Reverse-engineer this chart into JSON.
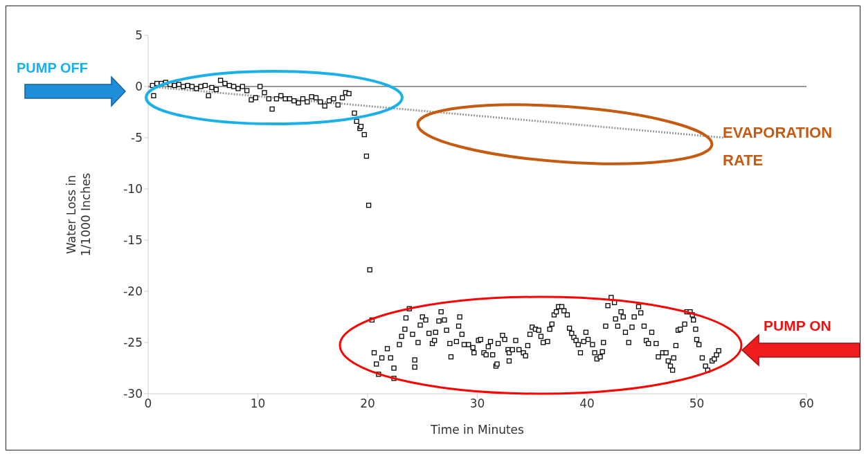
{
  "chart_data": {
    "type": "scatter",
    "xlabel": "Time in Minutes",
    "ylabel": "Water Loss in\n1/1000 Inches",
    "annotations": [
      "PUMP OFF",
      "EVAPORATION RATE",
      "PUMP ON"
    ],
    "xlim": [
      0,
      60
    ],
    "xticks": [
      0,
      10,
      20,
      30,
      40,
      50,
      60
    ],
    "ylim": [
      -30,
      5
    ],
    "yticks": [
      5,
      0,
      -5,
      -10,
      -15,
      -20,
      -25,
      -30
    ],
    "grid": false,
    "legend": false,
    "marker": "square",
    "ref_lines": [
      {
        "axis": "y",
        "value": 0,
        "color": "#999999"
      }
    ],
    "series": [
      {
        "color": "#000000",
        "x": [
          0.4,
          0.5,
          0.8,
          1.2,
          1.6,
          2.0,
          2.4,
          2.8,
          3.2,
          3.6,
          4.0,
          4.4,
          4.8,
          5.2,
          5.5,
          5.8,
          6.2,
          6.6,
          7.0,
          7.4,
          7.8,
          8.2,
          8.6,
          9.0,
          9.4,
          9.8,
          10.2,
          10.6,
          11.0,
          11.3,
          11.7,
          12.1,
          12.5,
          12.9,
          13.3,
          13.7,
          14.1,
          14.5,
          14.9,
          15.3,
          15.7,
          16.1,
          16.5,
          16.9,
          17.3,
          17.7,
          18.0,
          18.3,
          18.8,
          19.0,
          19.3,
          19.4,
          19.7,
          19.9,
          20.1,
          20.2,
          20.4,
          20.6,
          20.8,
          21.0,
          21.3,
          21.8,
          22.1,
          22.4,
          22.4,
          22.9,
          23.1,
          23.4,
          23.5,
          23.8,
          24.1,
          24.3,
          24.3,
          24.6,
          24.8,
          25.0,
          25.3,
          25.6,
          25.9,
          26.1,
          26.2,
          26.5,
          26.7,
          27.0,
          27.2,
          27.5,
          27.6,
          28.1,
          28.3,
          28.4,
          28.6,
          28.8,
          29.2,
          29.6,
          29.7,
          30.1,
          30.3,
          30.6,
          30.8,
          31.0,
          31.2,
          31.4,
          31.7,
          31.8,
          31.9,
          32.3,
          32.5,
          32.8,
          32.9,
          32.9,
          33.2,
          33.5,
          33.8,
          34.2,
          34.4,
          34.6,
          34.8,
          35.0,
          35.3,
          35.6,
          35.8,
          36.0,
          36.4,
          36.6,
          36.8,
          37.0,
          37.2,
          37.4,
          37.7,
          37.9,
          38.2,
          38.4,
          38.6,
          38.8,
          39.0,
          39.2,
          39.4,
          39.7,
          39.9,
          40.1,
          40.5,
          40.7,
          40.9,
          41.2,
          41.4,
          41.5,
          41.7,
          41.9,
          42.2,
          42.5,
          42.6,
          42.8,
          43.1,
          43.3,
          43.5,
          43.8,
          44.1,
          44.3,
          44.7,
          44.9,
          45.2,
          45.4,
          45.6,
          45.9,
          46.3,
          46.5,
          46.9,
          47.2,
          47.4,
          47.6,
          47.8,
          47.9,
          48.1,
          48.3,
          48.5,
          48.9,
          49.1,
          49.4,
          49.6,
          49.7,
          49.9,
          50.0,
          50.2,
          50.5,
          50.8,
          51.0,
          51.4,
          51.6,
          51.8,
          52.0
        ],
        "values": [
          0.1,
          -0.9,
          0.3,
          0.3,
          0.4,
          0.2,
          0.1,
          0.2,
          0.0,
          0.1,
          0.0,
          -0.2,
          0.0,
          0.1,
          -0.9,
          -0.1,
          -0.3,
          0.6,
          0.3,
          0.1,
          0.0,
          -0.2,
          0.0,
          -0.4,
          -1.3,
          -1.1,
          0.0,
          -0.6,
          -1.2,
          -2.2,
          -1.2,
          -0.9,
          -1.2,
          -1.2,
          -1.4,
          -1.6,
          -1.2,
          -1.5,
          -1.0,
          -1.1,
          -1.5,
          -1.9,
          -1.4,
          -1.2,
          -1.8,
          -1.1,
          -0.6,
          -0.7,
          -2.6,
          -3.4,
          -4.1,
          -3.9,
          -4.7,
          -6.8,
          -11.6,
          -17.9,
          -22.8,
          -26.0,
          -27.1,
          -28.1,
          -26.5,
          -25.6,
          -26.5,
          -27.5,
          -28.5,
          -25.2,
          -24.4,
          -23.7,
          -22.6,
          -21.7,
          -24.2,
          -26.7,
          -27.4,
          -25.0,
          -23.3,
          -22.5,
          -22.8,
          -24.1,
          -25.1,
          -24.8,
          -24.0,
          -22.9,
          -22.0,
          -22.8,
          -23.8,
          -25.1,
          -26.4,
          -24.9,
          -23.4,
          -22.5,
          -24.2,
          -25.2,
          -25.2,
          -25.5,
          -26.0,
          -24.8,
          -24.7,
          -26.0,
          -26.2,
          -25.4,
          -24.9,
          -26.2,
          -27.3,
          -27.1,
          -25.1,
          -24.3,
          -24.7,
          -25.7,
          -26.0,
          -26.8,
          -25.7,
          -24.8,
          -25.7,
          -26.0,
          -26.3,
          -25.3,
          -24.2,
          -23.5,
          -23.7,
          -23.8,
          -24.4,
          -25.0,
          -24.9,
          -23.7,
          -23.2,
          -22.3,
          -22.0,
          -21.5,
          -21.5,
          -21.9,
          -22.3,
          -23.6,
          -24.1,
          -24.5,
          -24.8,
          -25.2,
          -26.0,
          -24.9,
          -24.0,
          -24.7,
          -25.2,
          -26.0,
          -26.6,
          -26.4,
          -25.9,
          -25.0,
          -23.4,
          -21.4,
          -20.6,
          -21.1,
          -22.7,
          -23.4,
          -22.0,
          -22.5,
          -24.0,
          -25.0,
          -23.5,
          -22.5,
          -21.5,
          -22.1,
          -23.4,
          -24.8,
          -25.1,
          -24.0,
          -25.1,
          -26.4,
          -26.0,
          -26.0,
          -26.8,
          -27.3,
          -27.7,
          -26.5,
          -25.3,
          -23.8,
          -23.7,
          -23.2,
          -22.0,
          -22.0,
          -22.3,
          -22.8,
          -23.7,
          -24.7,
          -25.2,
          -26.5,
          -27.3,
          -27.7,
          -26.8,
          -26.6,
          -26.2,
          -25.8
        ]
      },
      {
        "type": "line",
        "color": "#999999",
        "line_style": "dotted",
        "marker": "none",
        "x": [
          0,
          52.5
        ],
        "values": [
          0,
          -5
        ]
      }
    ]
  }
}
